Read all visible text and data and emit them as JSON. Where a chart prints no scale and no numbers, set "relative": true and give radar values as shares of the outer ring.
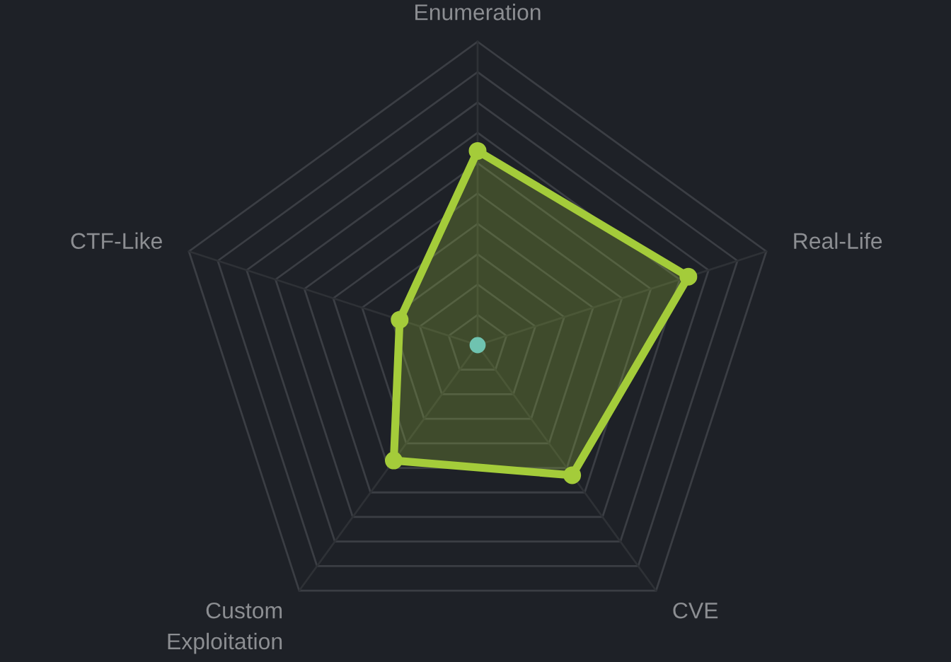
{
  "chart_data": {
    "type": "radar",
    "categories": [
      "Enumeration",
      "Real-Life",
      "CVE",
      "Custom Exploitation",
      "CTF-Like"
    ],
    "series": [
      {
        "color": "#a4cc3a",
        "values": [
          0.64,
          0.73,
          0.53,
          0.47,
          0.27
        ]
      }
    ],
    "relative": true,
    "grid": true,
    "marker": "circle"
  }
}
